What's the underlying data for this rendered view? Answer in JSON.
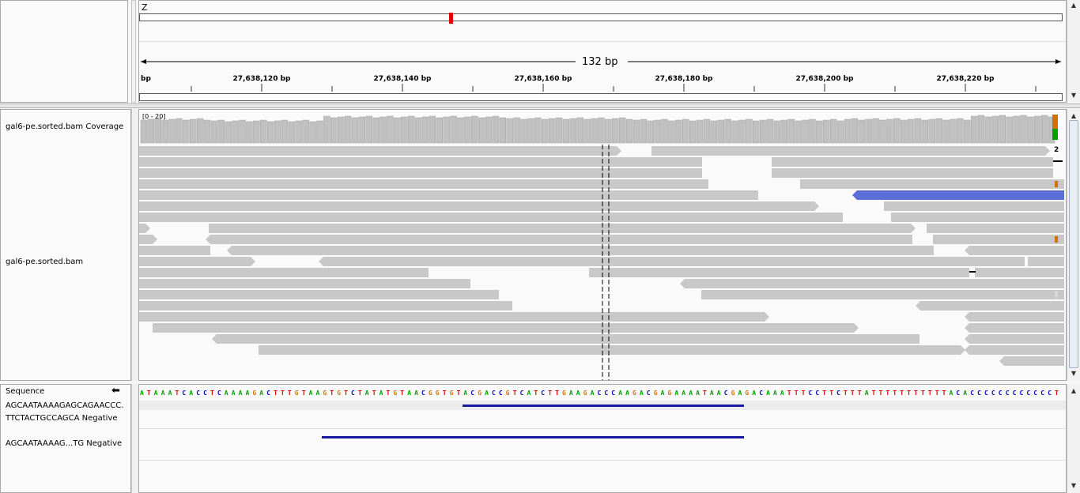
{
  "ruler": {
    "chromosome": "Z",
    "span_label": "132 bp",
    "tick_prefix": "bp",
    "ticks": [
      {
        "label": "27,638,120 bp",
        "pos": 27638120
      },
      {
        "label": "27,638,140 bp",
        "pos": 27638140
      },
      {
        "label": "27,638,160 bp",
        "pos": 27638160
      },
      {
        "label": "27,638,180 bp",
        "pos": 27638180
      },
      {
        "label": "27,638,200 bp",
        "pos": 27638200
      },
      {
        "label": "27,638,220 bp",
        "pos": 27638220
      }
    ]
  },
  "tracks": {
    "coverage_name": "gal6-pe.sorted.bam Coverage",
    "coverage_range": "[0 - 20]",
    "alignment_name": "gal6-pe.sorted.bam",
    "insertion_count": "2"
  },
  "features": {
    "sequence_label": "Sequence",
    "sequence_arrow": "⬅",
    "primer1_name_line1": "AGCAATAAAAGAGCAGAACCC.",
    "primer1_name_line2": "TTCTACTGCCAGCA Negative",
    "primer2_name": "AGCAATAAAAG...TG Negative",
    "reference_sequence": "ATAAATCACCTCAAAAGACTTTGTAAGTGTCTATATGTAACGGTGTACGACCGTCATCTTGAAGACCCAAGACGAGAAAATAACGAGACAAATTTCCTTCTTTATTTTTTTTTTTACACCCCCCCCCCCCTC"
  },
  "colors": {
    "read": "#c8c8c8",
    "read_highlight": "#5b6fd6",
    "coverage": "#c0c0c0",
    "primer": "#1a1aa0",
    "base_A": "#00a000",
    "base_C": "#0000c8",
    "base_G": "#d17105",
    "base_T": "#e00000"
  }
}
